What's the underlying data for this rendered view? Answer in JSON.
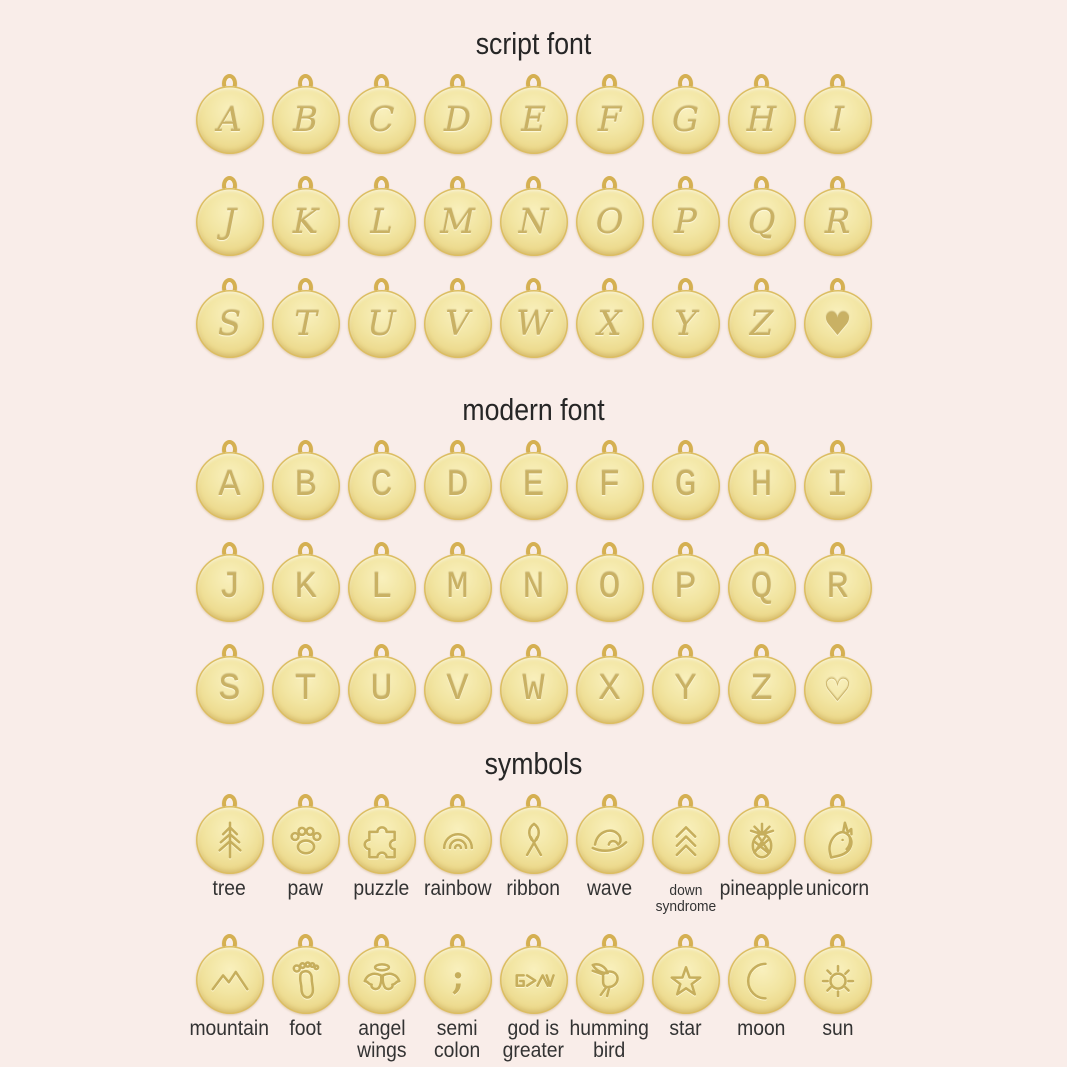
{
  "page": {
    "background_color": "#f9ede9",
    "title_color": "#262626",
    "label_color": "#333333",
    "disc_gold_light": "#f9f0bd",
    "disc_gold_dark": "#e5ce7d",
    "engrave_color": "#c9b164",
    "bail_color": "#d5b052"
  },
  "script_section": {
    "title": "script font",
    "style": "script",
    "rows": [
      [
        "A",
        "B",
        "C",
        "D",
        "E",
        "F",
        "G",
        "H",
        "I"
      ],
      [
        "J",
        "K",
        "L",
        "M",
        "N",
        "O",
        "P",
        "Q",
        "R"
      ],
      [
        "S",
        "T",
        "U",
        "V",
        "W",
        "X",
        "Y",
        "Z",
        "♥"
      ]
    ]
  },
  "modern_section": {
    "title": "modern font",
    "style": "modern",
    "rows": [
      [
        "A",
        "B",
        "C",
        "D",
        "E",
        "F",
        "G",
        "H",
        "I"
      ],
      [
        "J",
        "K",
        "L",
        "M",
        "N",
        "O",
        "P",
        "Q",
        "R"
      ],
      [
        "S",
        "T",
        "U",
        "V",
        "W",
        "X",
        "Y",
        "Z",
        "♡"
      ]
    ]
  },
  "symbols_section": {
    "title": "symbols",
    "rows": [
      [
        {
          "icon": "tree",
          "label": "tree"
        },
        {
          "icon": "paw",
          "label": "paw"
        },
        {
          "icon": "puzzle",
          "label": "puzzle"
        },
        {
          "icon": "rainbow",
          "label": "rainbow"
        },
        {
          "icon": "ribbon",
          "label": "ribbon"
        },
        {
          "icon": "wave",
          "label": "wave"
        },
        {
          "icon": "down-syndrome",
          "label": "down\nsyndrome",
          "small": true
        },
        {
          "icon": "pineapple",
          "label": "pineapple"
        },
        {
          "icon": "unicorn",
          "label": "unicorn"
        }
      ],
      [
        {
          "icon": "mountain",
          "label": "mountain"
        },
        {
          "icon": "foot",
          "label": "foot"
        },
        {
          "icon": "angel-wings",
          "label": "angel\nwings"
        },
        {
          "icon": "semicolon",
          "label": "semi\ncolon"
        },
        {
          "icon": "god-is-greater",
          "label": "god is\ngreater"
        },
        {
          "icon": "hummingbird",
          "label": "humming\nbird"
        },
        {
          "icon": "star",
          "label": "star"
        },
        {
          "icon": "moon",
          "label": "moon"
        },
        {
          "icon": "sun",
          "label": "sun"
        }
      ]
    ]
  }
}
